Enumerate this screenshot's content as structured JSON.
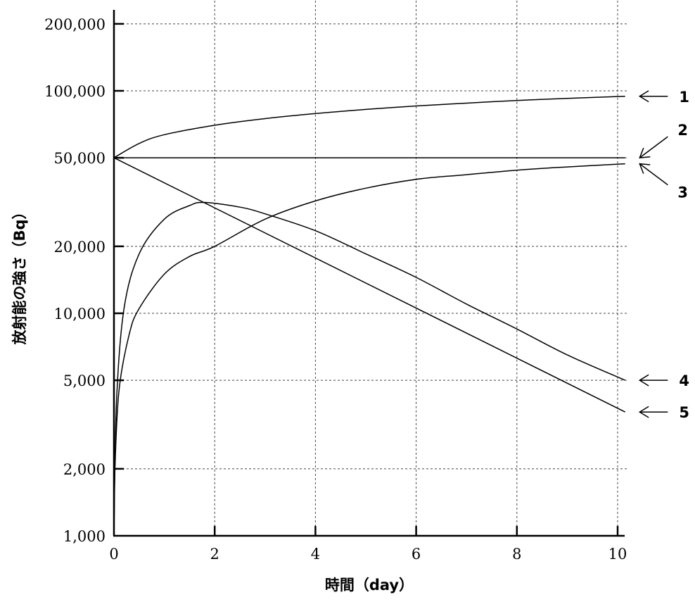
{
  "chart_data": {
    "type": "line",
    "xlabel": "時間（day）",
    "ylabel": "放射能の強さ（Bq）",
    "xlim": [
      0,
      10.2
    ],
    "ylim": [
      1000,
      260000
    ],
    "yscale": "log",
    "grid": true,
    "x_ticks": [
      0,
      2,
      4,
      6,
      8,
      10
    ],
    "x_tick_labels": [
      "0",
      "2",
      "4",
      "6",
      "8",
      "10"
    ],
    "y_ticks": [
      1000,
      2000,
      5000,
      10000,
      20000,
      50000,
      100000,
      200000
    ],
    "y_tick_labels": [
      "1,000",
      "2,000",
      "5,000",
      "10,000",
      "20,000",
      "50,000",
      "100,000",
      "200,000"
    ],
    "series": [
      {
        "name": "1",
        "x": [
          0,
          0.5,
          1,
          2,
          3,
          4,
          5,
          6,
          7,
          8,
          9,
          10.15
        ],
        "values": [
          50000,
          58000,
          63500,
          70000,
          75000,
          79000,
          82500,
          85500,
          88000,
          90500,
          92500,
          94500
        ]
      },
      {
        "name": "2",
        "x": [
          0,
          10.15
        ],
        "values": [
          50000,
          50000
        ]
      },
      {
        "name": "3",
        "x": [
          0,
          0.02,
          0.1,
          0.3,
          0.5,
          1,
          1.5,
          2,
          3,
          4,
          5,
          6,
          7,
          8,
          9,
          10.15
        ],
        "values": [
          1000,
          2000,
          4500,
          8000,
          10500,
          15000,
          18000,
          20000,
          26500,
          32000,
          36500,
          40000,
          42000,
          44000,
          45500,
          47000
        ]
      },
      {
        "name": "4",
        "x": [
          0,
          0.05,
          0.2,
          0.5,
          1,
          1.5,
          1.8,
          2.5,
          3,
          4,
          5,
          6,
          7,
          8,
          9,
          10.15
        ],
        "values": [
          1000,
          4000,
          10500,
          18500,
          26500,
          30500,
          31500,
          30000,
          28000,
          23500,
          18500,
          14500,
          11000,
          8500,
          6500,
          5000
        ]
      },
      {
        "name": "5",
        "x": [
          0,
          10.15
        ],
        "values": [
          50000,
          3600
        ]
      }
    ]
  }
}
